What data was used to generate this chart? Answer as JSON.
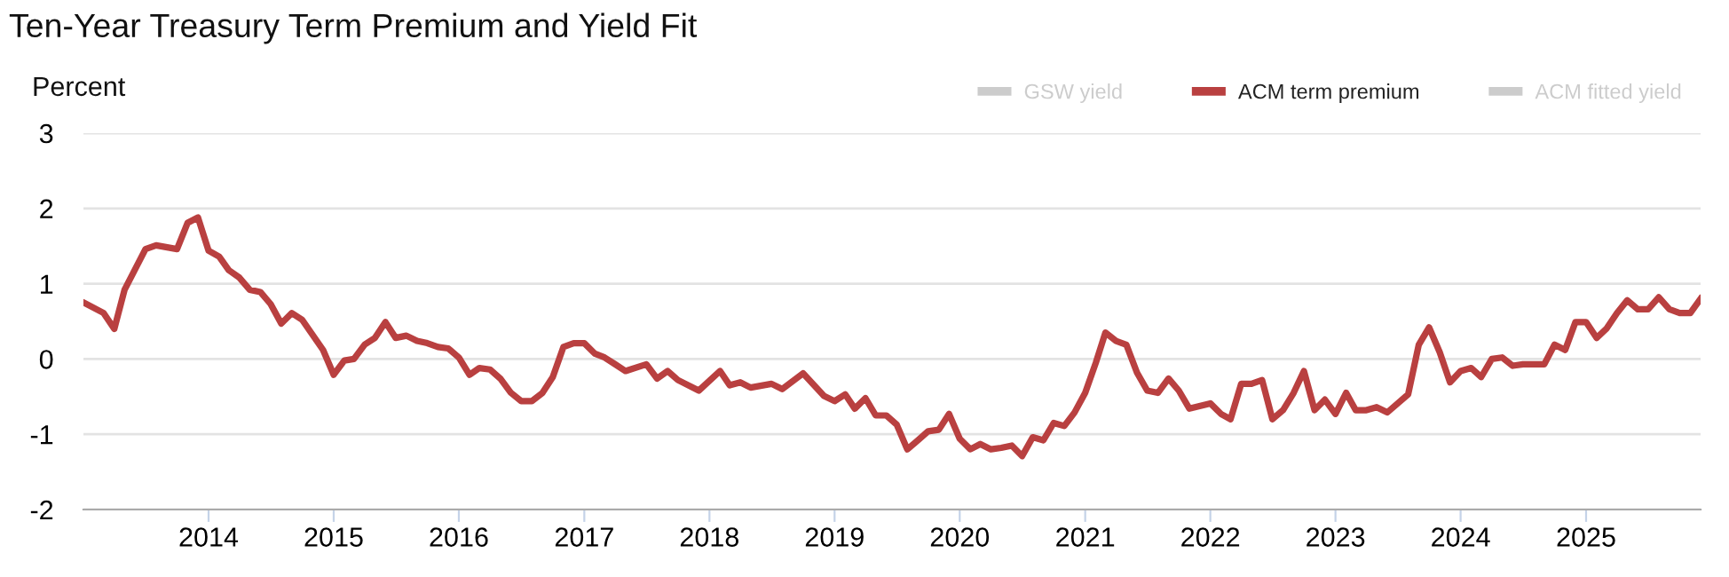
{
  "chart_data": {
    "type": "line",
    "title": "Ten-Year Treasury Term Premium and Yield Fit",
    "ylabel": "Percent",
    "x": [
      "2013-01",
      "2013-03",
      "2013-04",
      "2013-05",
      "2013-07",
      "2013-08",
      "2013-10",
      "2013-11",
      "2013-12",
      "2014-01",
      "2014-02",
      "2014-03",
      "2014-04",
      "2014-05",
      "2014-06",
      "2014-07",
      "2014-08",
      "2014-09",
      "2014-10",
      "2014-12",
      "2015-01",
      "2015-02",
      "2015-03",
      "2015-04",
      "2015-05",
      "2015-06",
      "2015-07",
      "2015-08",
      "2015-09",
      "2015-10",
      "2015-11",
      "2015-12",
      "2016-01",
      "2016-02",
      "2016-03",
      "2016-04",
      "2016-05",
      "2016-06",
      "2016-07",
      "2016-08",
      "2016-09",
      "2016-10",
      "2016-11",
      "2016-12",
      "2017-01",
      "2017-02",
      "2017-03",
      "2017-04",
      "2017-05",
      "2017-07",
      "2017-08",
      "2017-09",
      "2017-10",
      "2017-12",
      "2018-02",
      "2018-03",
      "2018-04",
      "2018-05",
      "2018-07",
      "2018-08",
      "2018-10",
      "2018-12",
      "2019-01",
      "2019-02",
      "2019-03",
      "2019-04",
      "2019-05",
      "2019-06",
      "2019-07",
      "2019-08",
      "2019-09",
      "2019-10",
      "2019-11",
      "2019-12",
      "2020-01",
      "2020-02",
      "2020-03",
      "2020-04",
      "2020-05",
      "2020-06",
      "2020-07",
      "2020-08",
      "2020-09",
      "2020-10",
      "2020-11",
      "2020-12",
      "2021-01",
      "2021-02",
      "2021-03",
      "2021-04",
      "2021-05",
      "2021-06",
      "2021-07",
      "2021-08",
      "2021-09",
      "2021-10",
      "2021-11",
      "2022-01",
      "2022-02",
      "2022-03",
      "2022-04",
      "2022-05",
      "2022-06",
      "2022-07",
      "2022-08",
      "2022-09",
      "2022-10",
      "2022-11",
      "2022-12",
      "2023-01",
      "2023-02",
      "2023-03",
      "2023-04",
      "2023-05",
      "2023-06",
      "2023-08",
      "2023-09",
      "2023-10",
      "2023-11",
      "2023-12",
      "2024-01",
      "2024-02",
      "2024-03",
      "2024-04",
      "2024-05",
      "2024-06",
      "2024-07",
      "2024-09",
      "2024-10",
      "2024-11",
      "2024-12",
      "2025-01",
      "2025-02",
      "2025-03",
      "2025-04",
      "2025-05",
      "2025-06",
      "2025-07",
      "2025-08",
      "2025-09",
      "2025-10",
      "2025-11",
      "2025-12"
    ],
    "series": [
      {
        "name": "GSW yield",
        "color": "#cccccc",
        "values": [
          null,
          null,
          null,
          null,
          null,
          null,
          null,
          null,
          null,
          null,
          null,
          null,
          null,
          null,
          null,
          null,
          null,
          null,
          null,
          null,
          null,
          null,
          null,
          null,
          null,
          null,
          null,
          null,
          null,
          null,
          null,
          null,
          null,
          null,
          null,
          null,
          null,
          null,
          null,
          null,
          null,
          null,
          null,
          null,
          null,
          null,
          null,
          null,
          null,
          null,
          null,
          null,
          null,
          null,
          null,
          null,
          null,
          null,
          null,
          null,
          null,
          null,
          null,
          null,
          null,
          null,
          null,
          null,
          null,
          null,
          null,
          null,
          null,
          null,
          null,
          null,
          null,
          null,
          null,
          null,
          null,
          null,
          null,
          null,
          null,
          null,
          null,
          null,
          null,
          null,
          null,
          null,
          null,
          null,
          null,
          null,
          null,
          null,
          null,
          null,
          null,
          null,
          null,
          null,
          null,
          null,
          null,
          null,
          null,
          null,
          null,
          null,
          null,
          null,
          null,
          null,
          null,
          null,
          null,
          null,
          null,
          null,
          null,
          null,
          null,
          null,
          null,
          null,
          null,
          null,
          null,
          null,
          null,
          null,
          null,
          null,
          null,
          null,
          null,
          null,
          null,
          null,
          null
        ]
      },
      {
        "name": "ACM term premium",
        "color": "#b94040",
        "values": [
          0.75,
          0.61,
          0.4,
          0.92,
          1.46,
          1.51,
          1.46,
          1.81,
          1.88,
          1.44,
          1.36,
          1.18,
          1.08,
          0.92,
          0.89,
          0.73,
          0.47,
          0.61,
          0.52,
          0.12,
          -0.21,
          -0.02,
          0.0,
          0.19,
          0.28,
          0.49,
          0.28,
          0.31,
          0.24,
          0.21,
          0.16,
          0.14,
          0.02,
          -0.21,
          -0.12,
          -0.14,
          -0.26,
          -0.45,
          -0.56,
          -0.56,
          -0.45,
          -0.24,
          0.16,
          0.21,
          0.21,
          0.07,
          0.02,
          -0.07,
          -0.16,
          -0.07,
          -0.26,
          -0.16,
          -0.28,
          -0.42,
          -0.16,
          -0.35,
          -0.31,
          -0.38,
          -0.33,
          -0.4,
          -0.19,
          -0.49,
          -0.56,
          -0.47,
          -0.66,
          -0.52,
          -0.75,
          -0.75,
          -0.87,
          -1.2,
          -1.08,
          -0.96,
          -0.94,
          -0.73,
          -1.06,
          -1.2,
          -1.13,
          -1.2,
          -1.18,
          -1.15,
          -1.29,
          -1.04,
          -1.08,
          -0.85,
          -0.89,
          -0.71,
          -0.45,
          -0.05,
          0.35,
          0.24,
          0.19,
          -0.18,
          -0.42,
          -0.45,
          -0.26,
          -0.42,
          -0.66,
          -0.59,
          -0.73,
          -0.8,
          -0.33,
          -0.33,
          -0.28,
          -0.8,
          -0.68,
          -0.45,
          -0.16,
          -0.68,
          -0.54,
          -0.73,
          -0.45,
          -0.68,
          -0.68,
          -0.64,
          -0.71,
          -0.47,
          0.19,
          0.42,
          0.09,
          -0.31,
          -0.16,
          -0.12,
          -0.24,
          0.0,
          0.02,
          -0.09,
          -0.07,
          -0.07,
          0.19,
          0.12,
          0.49,
          0.49,
          0.28,
          0.4,
          0.61,
          0.78,
          0.66,
          0.66,
          0.82,
          0.66,
          0.61,
          0.61,
          0.8
        ]
      },
      {
        "name": "ACM fitted yield",
        "color": "#cccccc",
        "values": [
          null,
          null,
          null,
          null,
          null,
          null,
          null,
          null,
          null,
          null,
          null,
          null,
          null,
          null,
          null,
          null,
          null,
          null,
          null,
          null,
          null,
          null,
          null,
          null,
          null,
          null,
          null,
          null,
          null,
          null,
          null,
          null,
          null,
          null,
          null,
          null,
          null,
          null,
          null,
          null,
          null,
          null,
          null,
          null,
          null,
          null,
          null,
          null,
          null,
          null,
          null,
          null,
          null,
          null,
          null,
          null,
          null,
          null,
          null,
          null,
          null,
          null,
          null,
          null,
          null,
          null,
          null,
          null,
          null,
          null,
          null,
          null,
          null,
          null,
          null,
          null,
          null,
          null,
          null,
          null,
          null,
          null,
          null,
          null,
          null,
          null,
          null,
          null,
          null,
          null,
          null,
          null,
          null,
          null,
          null,
          null,
          null,
          null,
          null,
          null,
          null,
          null,
          null,
          null,
          null,
          null,
          null,
          null,
          null,
          null,
          null,
          null,
          null,
          null,
          null,
          null,
          null,
          null,
          null,
          null,
          null,
          null,
          null,
          null,
          null,
          null,
          null,
          null,
          null,
          null,
          null,
          null,
          null,
          null,
          null,
          null,
          null,
          null,
          null,
          null,
          null,
          null,
          null
        ]
      }
    ],
    "xlim": [
      "2013-01",
      "2025-12"
    ],
    "xticks": [
      "2014",
      "2015",
      "2016",
      "2017",
      "2018",
      "2019",
      "2020",
      "2021",
      "2022",
      "2023",
      "2024",
      "2025"
    ],
    "ylim": [
      -2,
      3
    ],
    "yticks": [
      -2,
      -1,
      0,
      1,
      2,
      3
    ],
    "grid": "y",
    "legend": "top right",
    "line_style": "solid"
  }
}
